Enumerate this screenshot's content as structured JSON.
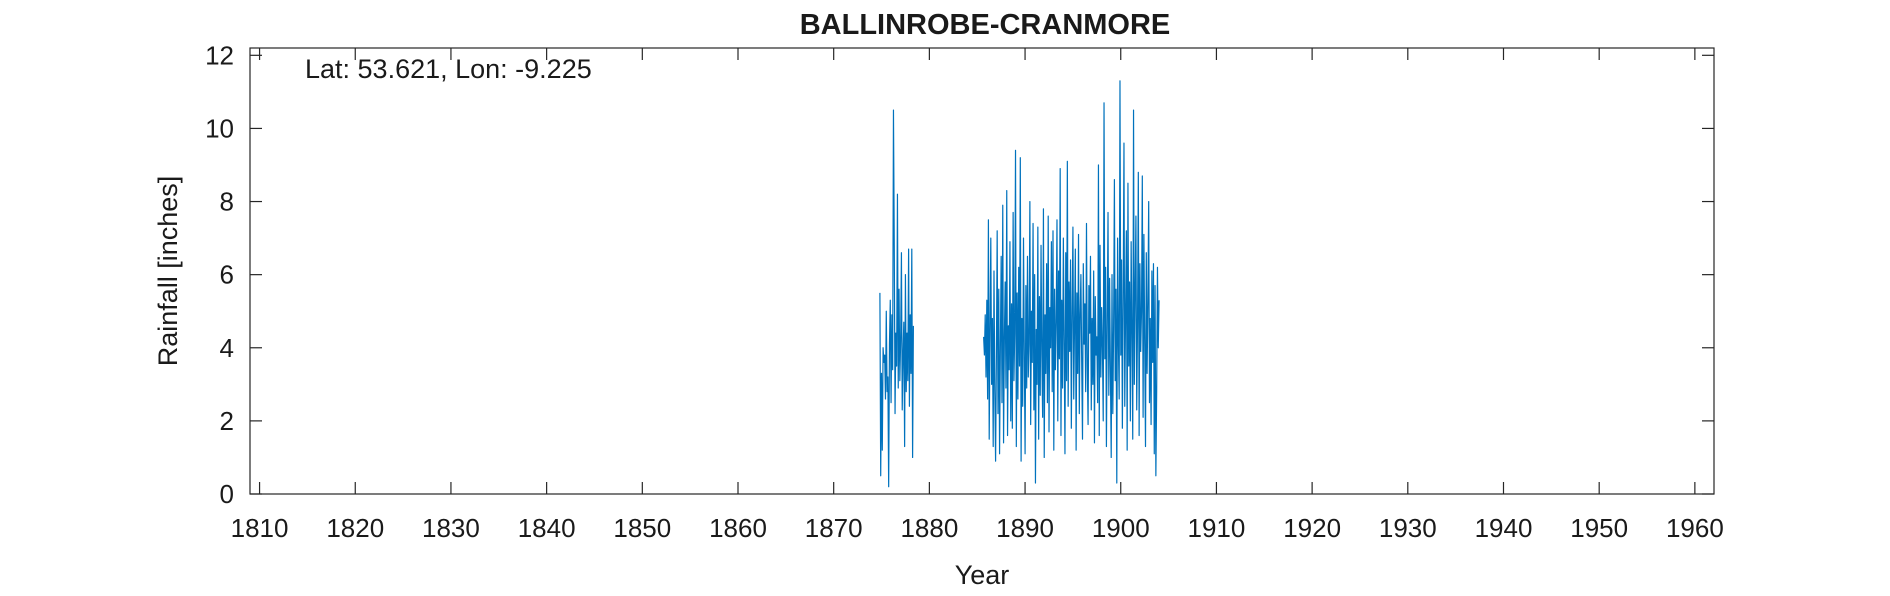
{
  "chart_data": {
    "type": "line",
    "title": "BALLINROBE-CRANMORE",
    "annotation": "Lat: 53.621, Lon: -9.225",
    "xlabel": "Year",
    "ylabel": "Rainfall [inches]",
    "xlim": [
      1809,
      1962
    ],
    "ylim": [
      0,
      12.2
    ],
    "xticks": [
      1810,
      1820,
      1830,
      1840,
      1850,
      1860,
      1870,
      1880,
      1890,
      1900,
      1910,
      1920,
      1930,
      1940,
      1950,
      1960
    ],
    "yticks": [
      0,
      2,
      4,
      6,
      8,
      10,
      12
    ],
    "grid": false,
    "line_color": "#0072BD",
    "series": [
      {
        "values_monthly": [
          {
            "start_year": 1874.83,
            "values": [
              5.5,
              0.5,
              3.3,
              1.2,
              4.0,
              3.6,
              3.8,
              2.6,
              5.0,
              2.8,
              3.2,
              0.2,
              4.1,
              5.3,
              2.5,
              4.9,
              3.4,
              10.5,
              6.8,
              2.2,
              4.4,
              3.5,
              8.2,
              2.9,
              5.6,
              3.1,
              4.2,
              6.6,
              2.3,
              3.8,
              4.7,
              1.3,
              6.0,
              2.8,
              4.4,
              3.1,
              6.7,
              2.4,
              4.9,
              3.3,
              6.7,
              1.0,
              4.6
            ]
          },
          {
            "start_year": 1885.67,
            "values": [
              4.3,
              3.8,
              4.9,
              3.2,
              5.3,
              2.6,
              7.5,
              1.5,
              4.5,
              7.0,
              3.0,
              4.8,
              1.3,
              6.1,
              2.8,
              0.9,
              3.7,
              7.2,
              2.2,
              5.6,
              1.1,
              4.0,
              6.5,
              2.5,
              7.9,
              1.4,
              4.2,
              5.8,
              2.9,
              8.3,
              1.6,
              4.6,
              3.4,
              6.9,
              2.0,
              5.2,
              1.8,
              7.7,
              3.1,
              4.4,
              9.4,
              1.3,
              5.5,
              2.6,
              6.2,
              3.5,
              9.2,
              0.9,
              4.8,
              2.4,
              7.0,
              3.9,
              1.1,
              5.7,
              2.9,
              6.5,
              3.2,
              4.1,
              8.0,
              1.9,
              5.0,
              3.6,
              7.4,
              2.3,
              6.0,
              0.3,
              4.5,
              3.0,
              7.3,
              1.5,
              5.4,
              2.7,
              6.8,
              3.8,
              2.1,
              7.8,
              1.0,
              4.9,
              3.3,
              6.3,
              2.5,
              7.6,
              1.7,
              5.1,
              4.0,
              6.9,
              2.8,
              7.2,
              1.2,
              5.6,
              3.4,
              4.7,
              7.5,
              2.0,
              6.1,
              3.7,
              8.9,
              1.6,
              5.3,
              2.9,
              7.0,
              4.2,
              1.1,
              6.6,
              3.1,
              9.1,
              2.4,
              5.8,
              3.9,
              6.4,
              1.8,
              5.0,
              7.3,
              2.6,
              4.6,
              6.7,
              1.2,
              5.5,
              3.3,
              7.1,
              2.2,
              4.9,
              6.0,
              3.6,
              1.5,
              6.3,
              4.1,
              5.2,
              2.8,
              7.4,
              3.5,
              1.9,
              5.7,
              4.4,
              6.5,
              2.3,
              4.8,
              3.0,
              6.1,
              1.4,
              5.4,
              3.8,
              4.3,
              2.5,
              9.0,
              1.6,
              6.8,
              3.2,
              5.1,
              4.0,
              2.0,
              10.7,
              3.7,
              6.2,
              1.3,
              4.7,
              7.7,
              2.7,
              5.9,
              3.4,
              1.0,
              6.0,
              2.2,
              4.5,
              8.6,
              3.1,
              5.6,
              0.3,
              7.0,
              4.2,
              2.6,
              11.3,
              3.8,
              6.4,
              1.8,
              5.3,
              9.6,
              2.4,
              4.9,
              7.2,
              1.2,
              8.5,
              3.5,
              5.8,
              2.0,
              6.9,
              4.4,
              1.5,
              10.5,
              3.0,
              5.5,
              7.6,
              2.3,
              4.6,
              8.8,
              1.6,
              6.3,
              3.9,
              5.0,
              8.7,
              2.1,
              7.1,
              4.1,
              1.3,
              6.6,
              3.3,
              5.2,
              8.0,
              2.5,
              4.8,
              1.9,
              6.1,
              3.6,
              6.3,
              1.1,
              5.7,
              0.5,
              2.8,
              6.2,
              4.0,
              5.3
            ]
          }
        ]
      }
    ]
  }
}
